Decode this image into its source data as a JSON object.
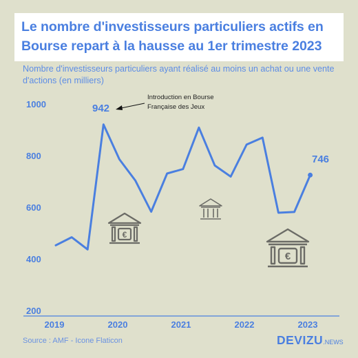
{
  "title": "Le nombre d'investisseurs particuliers actifs en Bourse repart à la hausse au 1er trimestre 2023",
  "subtitle": "Nombre d'investisseurs particuliers ayant réalisé au moins un achat ou une vente d'actions (en milliers)",
  "source": "Source : AMF - Icone Flaticon",
  "brand": {
    "name": "DEVIZU",
    "suffix": ".NEWS"
  },
  "annotation": {
    "line1": "Introduction en Bourse",
    "line2": "Française des Jeux"
  },
  "colors": {
    "accent": "#4a7fe0",
    "background": "#dfe0cc",
    "icon": "#6b6b66"
  },
  "icons": [
    "bank-euro-icon",
    "bank-icon",
    "bank-euro-icon"
  ],
  "chart_data": {
    "type": "line",
    "ylim": [
      200,
      1000
    ],
    "yticks": [
      200,
      400,
      600,
      800,
      1000
    ],
    "xticks": [
      "2019",
      "2020",
      "2021",
      "2022",
      "2023"
    ],
    "x": [
      "2019 T1",
      "2019 T2",
      "2019 T3",
      "2019 T4",
      "2020 T1",
      "2020 T2",
      "2020 T3",
      "2020 T4",
      "2021 T1",
      "2021 T2",
      "2021 T3",
      "2021 T4",
      "2022 T1",
      "2022 T2",
      "2022 T3",
      "2022 T4",
      "2023 T1"
    ],
    "values": [
      474,
      505,
      458,
      942,
      807,
      725,
      604,
      752,
      769,
      930,
      783,
      740,
      864,
      891,
      600,
      603,
      746
    ],
    "data_labels": [
      {
        "index": 3,
        "text": "942"
      },
      {
        "index": 16,
        "text": "746"
      }
    ],
    "grid": false,
    "legend": "none"
  }
}
